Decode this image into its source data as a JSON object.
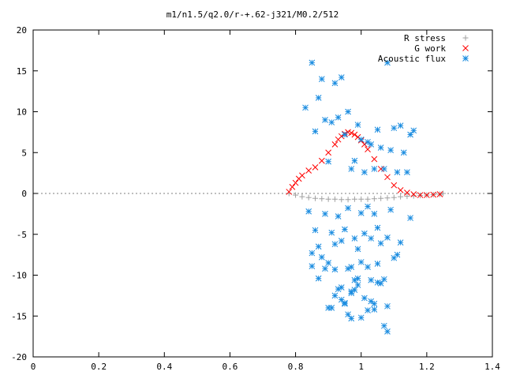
{
  "chart_data": {
    "type": "scatter",
    "title": "m1/n1.5/q2.0/r-+.62-j321/M0.2/512",
    "xlabel": "",
    "ylabel": "",
    "xlim": [
      0,
      1.4
    ],
    "ylim": [
      -20,
      20
    ],
    "xticks": [
      0,
      0.2,
      0.4,
      0.6,
      0.8,
      1,
      1.2,
      1.4
    ],
    "xtick_labels": [
      "0",
      "0.2",
      "0.4",
      "0.6",
      "0.8",
      "1",
      "1.2",
      "1.4"
    ],
    "yticks": [
      -20,
      -15,
      -10,
      -5,
      0,
      5,
      10,
      15,
      20
    ],
    "ytick_labels": [
      "-20",
      "-15",
      "-10",
      "-5",
      "0",
      "5",
      "10",
      "15",
      "20"
    ],
    "grid": false,
    "legend_position": "top-right",
    "series": [
      {
        "name": "R stress",
        "marker": "plus",
        "color": "#a0a0a0",
        "x": [
          0.78,
          0.8,
          0.82,
          0.84,
          0.86,
          0.88,
          0.9,
          0.92,
          0.94,
          0.96,
          0.98,
          1.0,
          1.02,
          1.04,
          1.06,
          1.08,
          1.1,
          1.12,
          1.14,
          1.16,
          1.18,
          1.2,
          1.22,
          1.24,
          1.25
        ],
        "y": [
          0,
          -0.2,
          -0.4,
          -0.5,
          -0.6,
          -0.65,
          -0.7,
          -0.7,
          -0.75,
          -0.75,
          -0.7,
          -0.7,
          -0.7,
          -0.65,
          -0.6,
          -0.55,
          -0.5,
          -0.4,
          -0.35,
          -0.3,
          -0.25,
          -0.2,
          -0.15,
          -0.1,
          0
        ]
      },
      {
        "name": "G work",
        "marker": "cross",
        "color": "#ff0000",
        "x": [
          0.78,
          0.79,
          0.8,
          0.81,
          0.82,
          0.84,
          0.86,
          0.88,
          0.9,
          0.92,
          0.93,
          0.94,
          0.95,
          0.96,
          0.97,
          0.98,
          0.99,
          1.0,
          1.01,
          1.02,
          1.04,
          1.06,
          1.08,
          1.1,
          1.12,
          1.14,
          1.16,
          1.18,
          1.2,
          1.22,
          1.24
        ],
        "y": [
          0.2,
          0.8,
          1.3,
          1.8,
          2.2,
          2.8,
          3.2,
          4.0,
          5.0,
          6.0,
          6.6,
          7.0,
          7.3,
          7.5,
          7.4,
          7.2,
          6.9,
          6.5,
          6.0,
          5.4,
          4.2,
          3.0,
          2.0,
          1.0,
          0.4,
          0.1,
          -0.1,
          -0.2,
          -0.2,
          -0.15,
          -0.1
        ]
      },
      {
        "name": "Acoustic flux",
        "marker": "star",
        "color": "#1a8ce0",
        "x": [
          0.85,
          0.88,
          0.92,
          0.94,
          1.08,
          0.87,
          0.83,
          0.89,
          0.91,
          0.93,
          0.96,
          0.99,
          1.02,
          1.05,
          1.1,
          1.12,
          1.15,
          1.16,
          0.86,
          0.95,
          1.0,
          1.03,
          1.06,
          1.09,
          1.13,
          0.97,
          0.98,
          1.01,
          1.04,
          0.9,
          1.07,
          1.11,
          1.14,
          0.84,
          0.89,
          0.93,
          0.96,
          1.0,
          1.02,
          1.04,
          1.09,
          1.15,
          0.86,
          0.91,
          0.95,
          0.98,
          1.01,
          1.05,
          1.08,
          1.12,
          0.87,
          0.92,
          0.94,
          0.99,
          1.03,
          1.06,
          1.11,
          0.85,
          0.88,
          0.9,
          0.97,
          1.0,
          1.02,
          1.05,
          1.1,
          0.92,
          0.96,
          0.98,
          1.03,
          1.07,
          0.87,
          0.94,
          0.99,
          1.06,
          0.85,
          0.89,
          0.93,
          0.97,
          1.01,
          1.04,
          0.9,
          0.95,
          1.0,
          1.08,
          0.92,
          0.97,
          1.02,
          0.94,
          0.98,
          1.03,
          0.91,
          0.96,
          1.07,
          0.97,
          0.99,
          1.05,
          0.95,
          1.04,
          1.08
        ],
        "y": [
          16,
          14,
          13.5,
          14.2,
          16,
          11.7,
          10.5,
          9.0,
          8.7,
          9.3,
          10.0,
          8.4,
          6.3,
          7.8,
          8.0,
          8.3,
          7.2,
          7.7,
          7.6,
          7.2,
          6.6,
          6.0,
          5.6,
          5.3,
          5.0,
          3.0,
          4.0,
          2.6,
          3.0,
          3.9,
          3.0,
          2.6,
          2.6,
          -2.2,
          -2.5,
          -2.8,
          -1.8,
          -2.4,
          -1.6,
          -2.5,
          -2.0,
          -3.0,
          -4.5,
          -4.8,
          -4.4,
          -5.5,
          -4.9,
          -4.2,
          -5.4,
          -6.0,
          -6.5,
          -6.2,
          -5.8,
          -6.8,
          -5.5,
          -6.1,
          -7.5,
          -7.3,
          -7.8,
          -8.5,
          -9.0,
          -8.4,
          -9.0,
          -8.6,
          -7.9,
          -9.3,
          -9.2,
          -10.6,
          -10.6,
          -10.5,
          -10.4,
          -11.5,
          -10.4,
          -11.0,
          -8.9,
          -9.2,
          -11.7,
          -12.2,
          -12.8,
          -13.5,
          -14.0,
          -13.5,
          -15.2,
          -13.8,
          -12.5,
          -15.3,
          -14.3,
          -13.0,
          -11.8,
          -13.2,
          -14.0,
          -14.8,
          -16.2,
          -12.0,
          -11.2,
          -10.9,
          -13.4,
          -14.2,
          -16.9
        ]
      }
    ]
  }
}
